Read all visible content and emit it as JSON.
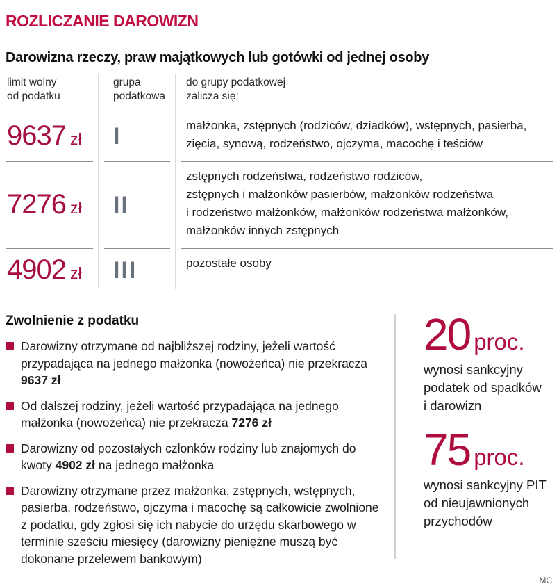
{
  "colors": {
    "accent_title": "#c00c41",
    "accent_amount": "#a60f3f",
    "accent_bullet": "#b00d3f",
    "roman_gray": "#67727e",
    "bar_gray": "#a9abae"
  },
  "header": {
    "title": "ROZLICZANIE DAROWIZN",
    "subtitle": "Darowizna rzeczy, praw majątkowych lub gotówki od jednej osoby"
  },
  "table": {
    "headers": [
      "limit wolny\nod podatku",
      "grupa\npodatkowa",
      "do grupy podatkowej\nzalicza się:"
    ],
    "rows": [
      {
        "limit": "9637",
        "currency": "zł",
        "group": "I",
        "desc_lines": [
          "małżonka, zstępnych (rodziców, dziadków), wstępnych, pasierba,",
          "zięcia, synową, rodzeństwo, ojczyma, macochę i teściów"
        ]
      },
      {
        "limit": "7276",
        "currency": "zł",
        "group": "II",
        "desc_lines": [
          "zstępnych rodzeństwa, rodzeństwo rodziców,",
          "zstępnych i małżonków pasierbów, małżonków rodzeństwa",
          "i rodzeństwo małżonków, małżonków rodzeństwa małżonków,",
          "małżonków innych zstępnych"
        ]
      },
      {
        "limit": "4902",
        "currency": "zł",
        "group": "III",
        "desc_lines": [
          "pozostałe osoby"
        ]
      }
    ]
  },
  "exemption": {
    "heading": "Zwolnienie z podatku",
    "bullets": [
      [
        {
          "t": "Darowizny otrzymane od najbliższej rodziny, jeżeli wartość przypadająca na jednego małżonka (nowożeńca) nie przekracza ",
          "b": false
        },
        {
          "t": "9637 zł",
          "b": true
        }
      ],
      [
        {
          "t": "Od dalszej rodziny, jeżeli wartość przypadająca na jednego małżonka (nowożeńca) nie przekracza ",
          "b": false
        },
        {
          "t": "7276 zł",
          "b": true
        }
      ],
      [
        {
          "t": "Darowizny od pozostałych członków rodziny lub znajomych do kwoty ",
          "b": false
        },
        {
          "t": "4902 zł",
          "b": true
        },
        {
          "t": " na jednego małżonka",
          "b": false
        }
      ],
      [
        {
          "t": "Darowizny otrzymane przez małżonka, zstępnych, wstępnych, pasierba, rodzeństwo, ojczyma i macochę są całkowicie zwolnione z podatku, gdy zgłosi się ich nabycie do urzędu skarbowego w terminie sześciu miesięcy (darowizny pieniężne muszą być dokonane przelewem bankowym)",
          "b": false
        }
      ]
    ]
  },
  "stats": {
    "items": [
      {
        "value": "20",
        "unit": "proc.",
        "caption": "wynosi sankcyjny\npodatek od spadków\ni darowizn"
      },
      {
        "value": "75",
        "unit": "proc.",
        "caption": "wynosi sankcyjny PIT\nod nieujawnionych\nprzychodów"
      }
    ]
  },
  "footer": {
    "credit": "MC"
  }
}
